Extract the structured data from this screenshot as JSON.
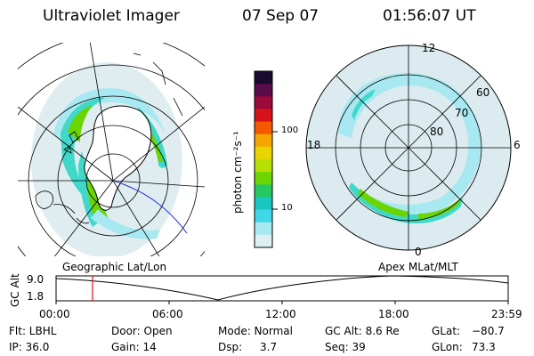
{
  "header": {
    "instrument": "Ultraviolet Imager",
    "date": "07 Sep 07",
    "time": "01:56:07 UT"
  },
  "maps": {
    "left_label": "Geographic Lat/Lon",
    "right_label": "Apex MLat/MLT",
    "mlt_labels": [
      "12",
      "18",
      "6",
      "0"
    ],
    "mlat_labels": [
      "60",
      "70",
      "80"
    ]
  },
  "colorbar": {
    "unit": "photon cm⁻²s⁻¹",
    "ticks": [
      "100",
      "10"
    ],
    "colors": [
      "#1a0b2e",
      "#5a0b4a",
      "#9a0b3a",
      "#d8121a",
      "#f35a00",
      "#f5a500",
      "#e9d400",
      "#b5e000",
      "#6cd400",
      "#28c860",
      "#18c8c0",
      "#40d8e8",
      "#a8e8f0",
      "#dcf0f4"
    ]
  },
  "timeline": {
    "y_axis_label": "GC Alt",
    "y_ticks": [
      "9.0",
      "1.8"
    ],
    "x_ticks": [
      "00:00",
      "06:00",
      "12:00",
      "18:00",
      "23:59"
    ],
    "current_time_hours": 1.935
  },
  "info": {
    "filter": "Flt: LBHL",
    "ip": "IP: 36.0",
    "door": "Door: Open",
    "gain": "Gain: 14",
    "mode": "Mode: Normal",
    "dsp_label": "Dsp:",
    "dsp_value": "3.7",
    "gc_alt": "GC Alt: 8.6 Re",
    "seq": "Seq: 39",
    "glat_label": "GLat:",
    "glat_value": "−80.7",
    "glon_label": "GLon:",
    "glon_value": "73.3"
  }
}
